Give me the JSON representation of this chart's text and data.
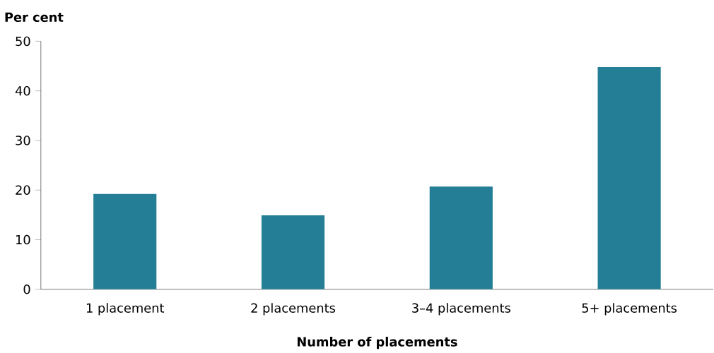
{
  "chart_data": {
    "type": "bar",
    "ylabel": "Per cent",
    "xlabel": "Number of placements",
    "categories": [
      "1 placement",
      "2 placements",
      "3–4 placements",
      "5+ placements"
    ],
    "values": [
      19.2,
      14.9,
      20.7,
      44.8
    ],
    "color": "#247f96",
    "ylim": [
      0,
      50
    ],
    "yticks": [
      0,
      10,
      20,
      30,
      40,
      50
    ]
  }
}
